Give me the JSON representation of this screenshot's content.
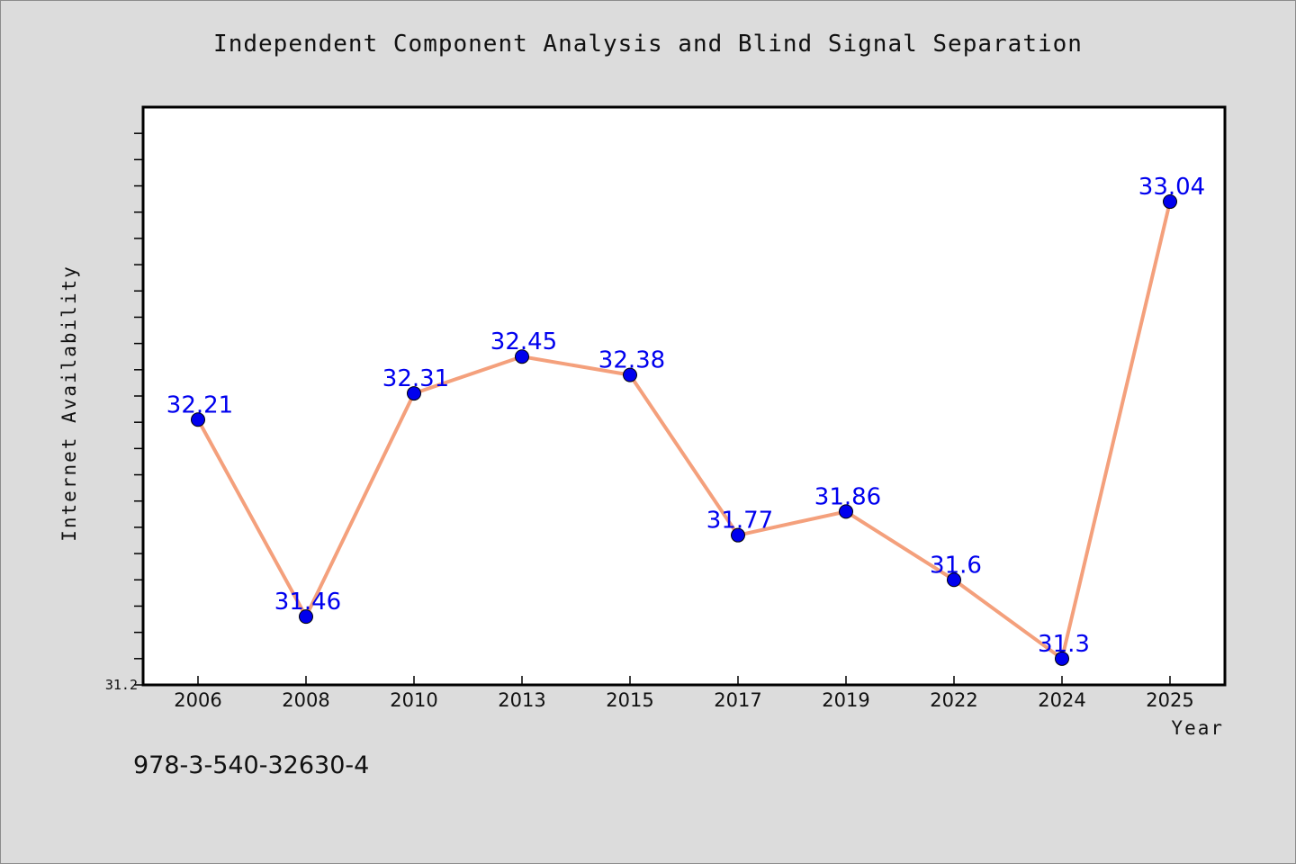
{
  "page": {
    "title": "Independent Component Analysis and Blind Signal Separation",
    "footer_code": "978-3-540-32630-4"
  },
  "colors": {
    "background": "#dcdcdc",
    "plot_background": "#ffffff",
    "line": "#f4a07c",
    "marker": "#0000ee",
    "data_label": "#0000ee"
  },
  "chart_data": {
    "type": "line",
    "title": "Independent Component Analysis and Blind Signal Separation",
    "xlabel": "Year",
    "ylabel": "Internet Availability",
    "categories": [
      "2006",
      "2008",
      "2010",
      "2013",
      "2015",
      "2017",
      "2019",
      "2022",
      "2024",
      "2025"
    ],
    "series": [
      {
        "values": [
          32.21,
          31.46,
          32.31,
          32.45,
          32.38,
          31.77,
          31.86,
          31.6,
          31.3,
          33.04
        ],
        "labels": [
          "32.21",
          "31.46",
          "32.31",
          "32.45",
          "32.38",
          "31.77",
          "31.86",
          "31.6",
          "31.3",
          "33.04"
        ]
      }
    ],
    "ylim": [
      31.2,
      33.4
    ],
    "yticks_labeled": [
      "31.2"
    ],
    "minor_tick_step": 0.1,
    "grid": false,
    "legend": "none"
  }
}
